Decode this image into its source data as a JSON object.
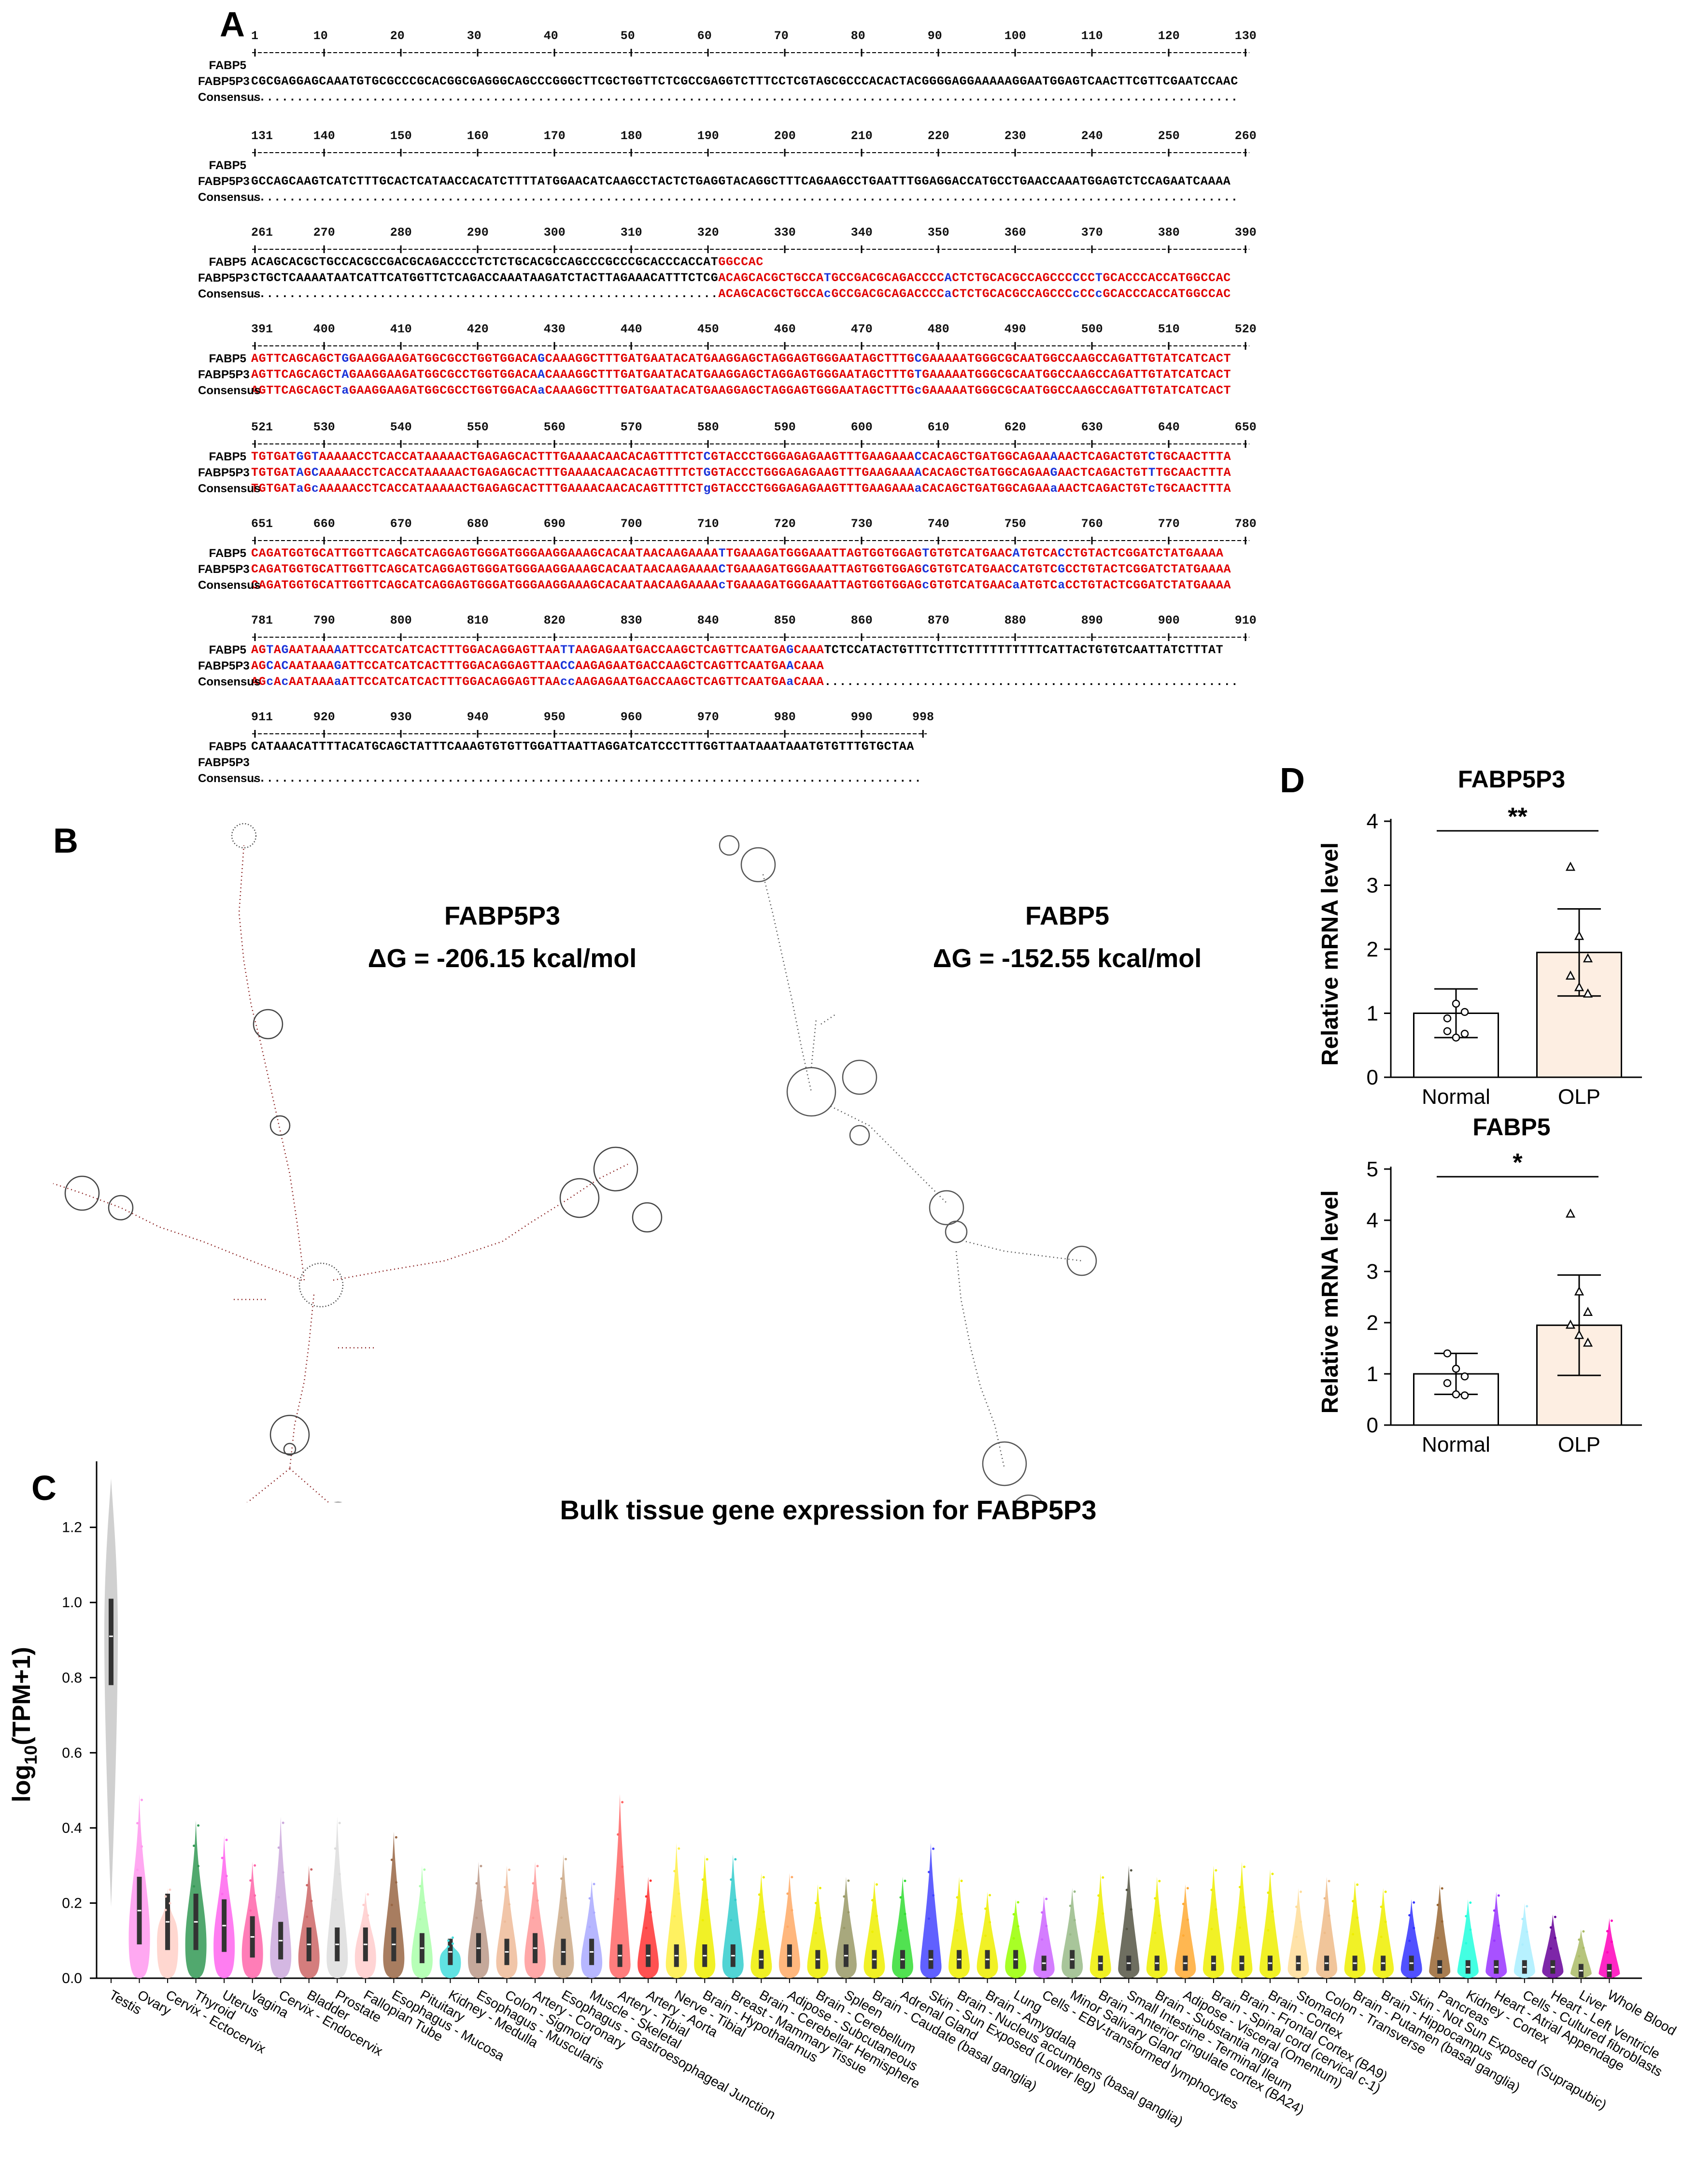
{
  "panels": {
    "a": "A",
    "b": "B",
    "c": "C",
    "d": "D"
  },
  "alignment": {
    "row_labels": [
      "FABP5",
      "FABP5P3",
      "Consensus"
    ],
    "blocks": [
      {
        "start": 1,
        "ticks": [
          "1",
          "10",
          "20",
          "30",
          "40",
          "50",
          "60",
          "70",
          "80",
          "90",
          "100",
          "110",
          "120",
          "130"
        ],
        "fabp5": "",
        "fabp5p3": "CGCGAGGAGCAAATGTGCGCCCGCACGGCGAGGGCAGCCCGGGCTTCGCTGGTTCTCGCCGAGGTCTTTCCTCGTAGCGCCCACACTACGGGGAGGAAAAAGGAATGGAGTCAACTTCGTTCGAATCCAAC",
        "consensus": "..................................................................................................................................."
      },
      {
        "start": 131,
        "ticks": [
          "131",
          "140",
          "150",
          "160",
          "170",
          "180",
          "190",
          "200",
          "210",
          "220",
          "230",
          "240",
          "250",
          "260"
        ],
        "fabp5": "",
        "fabp5p3": "GCCAGCAAGTCATCTTTGCACTCATAACCACATCTTTTATGGAACATCAAGCCTACTCTGAGGTACAGGCTTTCAGAAGCCTGAATTTGGAGGACCATGCCTGAACCAAATGGAGTCTCCAGAATCAAAA",
        "consensus": "..................................................................................................................................."
      },
      {
        "start": 261,
        "ticks": [
          "261",
          "270",
          "280",
          "290",
          "300",
          "310",
          "320",
          "330",
          "340",
          "350",
          "360",
          "370",
          "380",
          "390"
        ],
        "fabp5": "ACAGCACGCTGCCACGCCGACGCAGACCCCTCTCTGCACGCCAGCCCGCCCGCACCCACCATGGCCAC",
        "fabp5p3": "CTGCTCAAAATAATCATTCATGGTTCTCAGACCAAATAAGATCTACTTAGAAACATTTCTCGACAGCACGCTGCCATGCCGACGCAGACCCCACTCTGCACGCCAGCCCCCCTGCACCCACCATGGCCAC",
        "consensus": "..............................................................ACAGCACGCTGCCAcGCCGACGCAGACCCCaCTCTGCACGCCAGCCCcCCcGCACCCACCATGGCCAC"
      },
      {
        "start": 391,
        "ticks": [
          "391",
          "400",
          "410",
          "420",
          "430",
          "440",
          "450",
          "460",
          "470",
          "480",
          "490",
          "500",
          "510",
          "520"
        ],
        "fabp5": "AGTTCAGCAGCTGGAAGGAAGATGGCGCCTGGTGGACAGCAAAGGCTTTGATGAATACATGAAGGAGCTAGGAGTGGGAATAGCTTTGCGAAAAATGGGCGCAATGGCCAAGCCAGATTGTATCATCACT",
        "fabp5p3": "AGTTCAGCAGCTAGAAGGAAGATGGCGCCTGGTGGACAACAAAGGCTTTGATGAATACATGAAGGAGCTAGGAGTGGGAATAGCTTTGTGAAAAATGGGCGCAATGGCCAAGCCAGATTGTATCATCACT",
        "consensus": "AGTTCAGCAGCTaGAAGGAAGATGGCGCCTGGTGGACAaCAAAGGCTTTGATGAATACATGAAGGAGCTAGGAGTGGGAATAGCTTTGcGAAAAATGGGCGCAATGGCCAAGCCAGATTGTATCATCACT"
      },
      {
        "start": 521,
        "ticks": [
          "521",
          "530",
          "540",
          "550",
          "560",
          "570",
          "580",
          "590",
          "600",
          "610",
          "620",
          "630",
          "640",
          "650"
        ],
        "fabp5": "TGTGATGGTAAAAACCTCACCATAAAAACTGAGAGCACTTTGAAAACAACACAGTTTTCTCGTACCCTGGGAGAGAAGTTTGAAGAAACCACAGCTGATGGCAGAAAAACTCAGACTGTCTGCAACTTTA",
        "fabp5p3": "TGTGATAGCAAAAACCTCACCATAAAAACTGAGAGCACTTTGAAAACAACACAGTTTTCTGGTACCCTGGGAGAGAAGTTTGAAGAAAACACAGCTGATGGCAGAAGAACTCAGACTGTTTGCAACTTTA",
        "consensus": "TGTGATaGcAAAAACCTCACCATAAAAACTGAGAGCACTTTGAAAACAACACAGTTTTCTgGTACCCTGGGAGAGAAGTTTGAAGAAAaCACAGCTGATGGCAGAAaAACTCAGACTGTcTGCAACTTTA"
      },
      {
        "start": 651,
        "ticks": [
          "651",
          "660",
          "670",
          "680",
          "690",
          "700",
          "710",
          "720",
          "730",
          "740",
          "750",
          "760",
          "770",
          "780"
        ],
        "fabp5": "CAGATGGTGCATTGGTTCAGCATCAGGAGTGGGATGGGAAGGAAAGCACAATAACAAGAAAATTGAAAGATGGGAAATTAGTGGTGGAGTGTGTCATGAACATGTCACCTGTACTCGGATCTATGAAAA",
        "fabp5p3": "CAGATGGTGCATTGGTTCAGCATCAGGAGTGGGATGGGAAGGAAAGCACAATAACAAGAAAACTGAAAGATGGGAAATTAGTGGTGGAGCGTGTCATGAACCATGTCGCCTGTACTCGGATCTATGAAAA",
        "consensus": "CAGATGGTGCATTGGTTCAGCATCAGGAGTGGGATGGGAAGGAAAGCACAATAACAAGAAAAcTGAAAGATGGGAAATTAGTGGTGGAGcGTGTCATGAACaATGTCaCCTGTACTCGGATCTATGAAAA"
      },
      {
        "start": 781,
        "ticks": [
          "781",
          "790",
          "800",
          "810",
          "820",
          "830",
          "840",
          "850",
          "860",
          "870",
          "880",
          "890",
          "900",
          "910"
        ],
        "fabp5": "AGTAGAATAAAAATTCCATCATCACTTTGGACAGGAGTTAATTAAGAGAATGACCAAGCTCAGTTCAATGAGCAAATCTCCATACTGTTTCTTTCTTTTTTTTTTCATTACTGTGTCAATTATCTTTAT",
        "fabp5p3": "AGCACAATAAAGATTCCATCATCACTTTGGACAGGAGTTAACCAAGAGAATGACCAAGCTCAGTTCAATGAACAAA",
        "consensus": "AGcAcAATAAAaATTCCATCATCACTTTGGACAGGAGTTAAccAAGAGAATGACCAAGCTCAGTTCAATGAaCAAA......................................................."
      },
      {
        "start": 911,
        "ticks": [
          "911",
          "920",
          "930",
          "940",
          "950",
          "960",
          "970",
          "980",
          "990",
          "998"
        ],
        "fabp5": "CATAAACATTTTACATGCAGCTATTTCAAAGTGTGTTGGATTAATTAGGATCATCCCTTTGGTTAATAAATAAATGTGTTTGTGCTAA",
        "fabp5p3": "",
        "consensus": "........................................................................................."
      }
    ]
  },
  "panel_b": {
    "left_title": "FABP5P3",
    "left_dg": "ΔG = -206.15 kcal/mol",
    "right_title": "FABP5",
    "right_dg": "ΔG = -152.55 kcal/mol"
  },
  "chart_data": [
    {
      "type": "violin",
      "title": "Bulk tissue gene expression for FABP5P3",
      "ylabel": "log10(TPM+1)",
      "ylabel_main": "log",
      "ylabel_sub": "10",
      "ylabel_rest": "(TPM+1)",
      "ylim": [
        0,
        1.35
      ],
      "yticks": [
        "0.0",
        "0.2",
        "0.4",
        "0.6",
        "0.8",
        "1.0",
        "1.2"
      ],
      "categories": [
        "Testis",
        "Ovary",
        "Cervix - Ectocervix",
        "Thyroid",
        "Uterus",
        "Vagina",
        "Cervix - Endocervix",
        "Bladder",
        "Prostate",
        "Fallopian Tube",
        "Esophagus - Mucosa",
        "Pituitary",
        "Kidney - Medulla",
        "Esophagus - Muscularis",
        "Colon - Sigmoid",
        "Artery - Coronary",
        "Esophagus - Gastroesophageal Junction",
        "Muscle - Skeletal",
        "Artery - Tibial",
        "Artery - Aorta",
        "Nerve - Tibial",
        "Brain - Hypothalamus",
        "Breast - Mammary Tissue",
        "Brain - Cerebellar Hemisphere",
        "Adipose - Subcutaneous",
        "Brain - Cerebellum",
        "Spleen",
        "Brain - Caudate (basal ganglia)",
        "Adrenal Gland",
        "Skin - Sun Exposed (Lower leg)",
        "Brain - Nucleus accumbens (basal ganglia)",
        "Brain - Amygdala",
        "Lung",
        "Cells - EBV-transformed lymphocytes",
        "Minor Salivary Gland",
        "Brain - Anterior cingulate cortex (BA24)",
        "Small Intestine - Terminal Ileum",
        "Brain - Substantia nigra",
        "Adipose - Visceral (Omentum)",
        "Brain - Spinal cord (cervical c-1)",
        "Brain - Frontal Cortex (BA9)",
        "Brain - Cortex",
        "Stomach",
        "Colon - Transverse",
        "Brain - Putamen (basal ganglia)",
        "Brain - Hippocampus",
        "Skin - Not Sun Exposed (Suprapubic)",
        "Pancreas",
        "Kidney - Cortex",
        "Heart - Atrial Appendage",
        "Cells - Cultured fibroblasts",
        "Heart - Left Ventricle",
        "Liver",
        "Whole Blood"
      ],
      "medians": [
        0.91,
        0.18,
        0.15,
        0.15,
        0.14,
        0.11,
        0.1,
        0.09,
        0.09,
        0.09,
        0.09,
        0.08,
        0.07,
        0.08,
        0.07,
        0.08,
        0.07,
        0.07,
        0.06,
        0.06,
        0.06,
        0.06,
        0.06,
        0.05,
        0.06,
        0.05,
        0.06,
        0.05,
        0.05,
        0.05,
        0.05,
        0.05,
        0.05,
        0.04,
        0.05,
        0.04,
        0.04,
        0.04,
        0.04,
        0.04,
        0.04,
        0.04,
        0.04,
        0.04,
        0.04,
        0.04,
        0.04,
        0.03,
        0.03,
        0.03,
        0.03,
        0.03,
        0.02,
        0.02
      ],
      "maxima": [
        1.33,
        0.49,
        0.24,
        0.42,
        0.38,
        0.31,
        0.43,
        0.3,
        0.43,
        0.23,
        0.39,
        0.3,
        0.11,
        0.31,
        0.3,
        0.31,
        0.33,
        0.26,
        0.49,
        0.27,
        0.36,
        0.33,
        0.33,
        0.28,
        0.28,
        0.25,
        0.27,
        0.26,
        0.27,
        0.36,
        0.27,
        0.23,
        0.21,
        0.22,
        0.24,
        0.28,
        0.3,
        0.27,
        0.25,
        0.3,
        0.31,
        0.29,
        0.24,
        0.27,
        0.26,
        0.24,
        0.21,
        0.25,
        0.21,
        0.23,
        0.2,
        0.17,
        0.13,
        0.16
      ],
      "colors": [
        "#c8c8c8",
        "#ff99ee",
        "#ffd0c8",
        "#339955",
        "#ff66ee",
        "#ff66aa",
        "#ccaadd",
        "#cc6666",
        "#dddddd",
        "#ffcccc",
        "#996644",
        "#aaffaa",
        "#44dddd",
        "#bb9988",
        "#eebb99",
        "#ff9999",
        "#ccaa88",
        "#aaaaff",
        "#ff6666",
        "#ff3333",
        "#ffee44",
        "#eeee00",
        "#33cccc",
        "#eeee00",
        "#ffaa66",
        "#eeee00",
        "#999966",
        "#eeee00",
        "#33dd33",
        "#4444ff",
        "#eeee00",
        "#eeee00",
        "#99ff00",
        "#cc66ff",
        "#99bb88",
        "#eeee00",
        "#555544",
        "#eeee00",
        "#ffaa33",
        "#eeee00",
        "#eeee00",
        "#eeee00",
        "#ffdd99",
        "#eebb88",
        "#eeee00",
        "#eeee00",
        "#3333ff",
        "#996633",
        "#22ffdd",
        "#9933ff",
        "#aaeeff",
        "#660099",
        "#aabb66",
        "#ff00bb"
      ]
    },
    {
      "type": "bar",
      "title": "FABP5P3",
      "ylabel": "Relative mRNA level",
      "categories": [
        "Normal",
        "OLP"
      ],
      "values": [
        1.0,
        1.95
      ],
      "errors": [
        0.38,
        0.68
      ],
      "ylim": [
        0,
        4
      ],
      "yticks": [
        "0",
        "1",
        "2",
        "3",
        "4"
      ],
      "significance": "**",
      "points": [
        [
          0.72,
          1.15,
          1.02,
          0.92,
          0.62,
          0.68
        ],
        [
          3.28,
          2.2,
          1.85,
          1.58,
          1.4,
          1.3
        ]
      ],
      "colors": [
        "#ffffff",
        "#fdeee2"
      ]
    },
    {
      "type": "bar",
      "title": "FABP5",
      "ylabel": "Relative mRNA level",
      "categories": [
        "Normal",
        "OLP"
      ],
      "values": [
        1.0,
        1.95
      ],
      "errors": [
        0.4,
        0.98
      ],
      "ylim": [
        0,
        5
      ],
      "yticks": [
        "0",
        "1",
        "2",
        "3",
        "4",
        "5"
      ],
      "significance": "*",
      "points": [
        [
          1.4,
          1.1,
          0.95,
          0.82,
          0.6,
          0.58
        ],
        [
          4.12,
          2.6,
          2.2,
          1.95,
          1.75,
          1.6
        ]
      ],
      "colors": [
        "#ffffff",
        "#fdeee2"
      ]
    }
  ]
}
